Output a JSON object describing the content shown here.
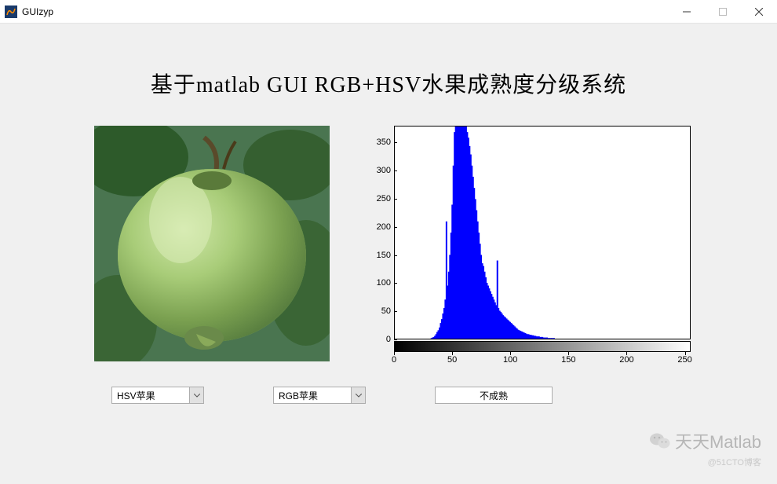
{
  "window": {
    "title": "GUIzyp"
  },
  "main_title": "基于matlab GUI RGB+HSV水果成熟度分级系统",
  "image_panel": {
    "bg_colors": {
      "leaf_dark": "#2d5a2a",
      "leaf_mid": "#4a7a3a",
      "apple_light": "#b8d088",
      "apple_mid": "#8fb860",
      "apple_dark": "#5a8040",
      "shadow": "#3a5530"
    }
  },
  "histogram": {
    "type": "histogram",
    "xlim": [
      0,
      255
    ],
    "ylim": [
      0,
      380
    ],
    "xticks": [
      0,
      50,
      100,
      150,
      200,
      250
    ],
    "yticks": [
      0,
      50,
      100,
      150,
      200,
      250,
      300,
      350
    ],
    "bar_color": "#0000ff",
    "background_color": "#ffffff",
    "border_color": "#000000",
    "values": [
      0,
      0,
      0,
      0,
      0,
      0,
      0,
      0,
      0,
      0,
      0,
      0,
      0,
      0,
      0,
      0,
      0,
      0,
      0,
      0,
      0,
      0,
      0,
      0,
      0,
      0,
      0,
      0,
      0,
      0,
      0,
      1,
      2,
      3,
      5,
      8,
      12,
      15,
      20,
      28,
      35,
      45,
      55,
      70,
      210,
      95,
      120,
      150,
      190,
      240,
      310,
      370,
      420,
      420,
      420,
      415,
      410,
      400,
      395,
      390,
      385,
      380,
      370,
      360,
      345,
      330,
      310,
      290,
      270,
      250,
      230,
      210,
      190,
      170,
      150,
      135,
      130,
      120,
      110,
      100,
      95,
      90,
      85,
      80,
      75,
      70,
      65,
      60,
      140,
      55,
      50,
      48,
      45,
      42,
      40,
      38,
      36,
      34,
      32,
      30,
      28,
      26,
      24,
      22,
      20,
      18,
      16,
      15,
      14,
      13,
      12,
      11,
      10,
      9,
      8,
      8,
      7,
      7,
      6,
      6,
      5,
      5,
      4,
      4,
      4,
      3,
      3,
      3,
      2,
      2,
      2,
      2,
      1,
      1,
      1,
      1,
      1,
      1,
      0,
      0,
      0,
      0,
      0,
      0,
      0,
      0,
      0,
      0,
      0,
      0,
      0,
      0,
      0,
      0,
      0,
      0,
      0,
      0,
      0,
      0,
      0,
      0,
      0,
      0,
      0,
      0,
      0,
      0,
      0,
      0,
      0,
      0,
      0,
      0,
      0,
      0,
      0,
      0,
      0,
      0,
      0,
      0,
      0,
      0,
      0,
      0,
      0,
      0,
      0,
      0,
      0,
      0,
      0,
      0,
      0,
      0,
      0,
      0,
      0,
      0,
      0,
      0,
      0,
      0,
      0,
      0,
      0,
      0,
      0,
      0,
      0,
      0,
      0,
      0,
      0,
      0,
      0,
      0,
      0,
      0,
      0,
      0,
      0,
      0,
      0,
      0,
      0,
      0,
      0,
      0,
      0,
      0,
      0,
      0,
      0,
      0,
      0,
      0,
      0,
      0,
      0,
      0,
      0,
      0,
      0,
      0,
      0,
      0,
      0,
      0,
      0,
      0,
      0,
      0,
      0,
      0
    ]
  },
  "controls": {
    "dropdown1": {
      "label": "HSV苹果"
    },
    "dropdown2": {
      "label": "RGB苹果"
    },
    "result": {
      "label": "不成熟"
    }
  },
  "watermark": {
    "main": "天天Matlab",
    "sub": "@51CTO博客"
  }
}
